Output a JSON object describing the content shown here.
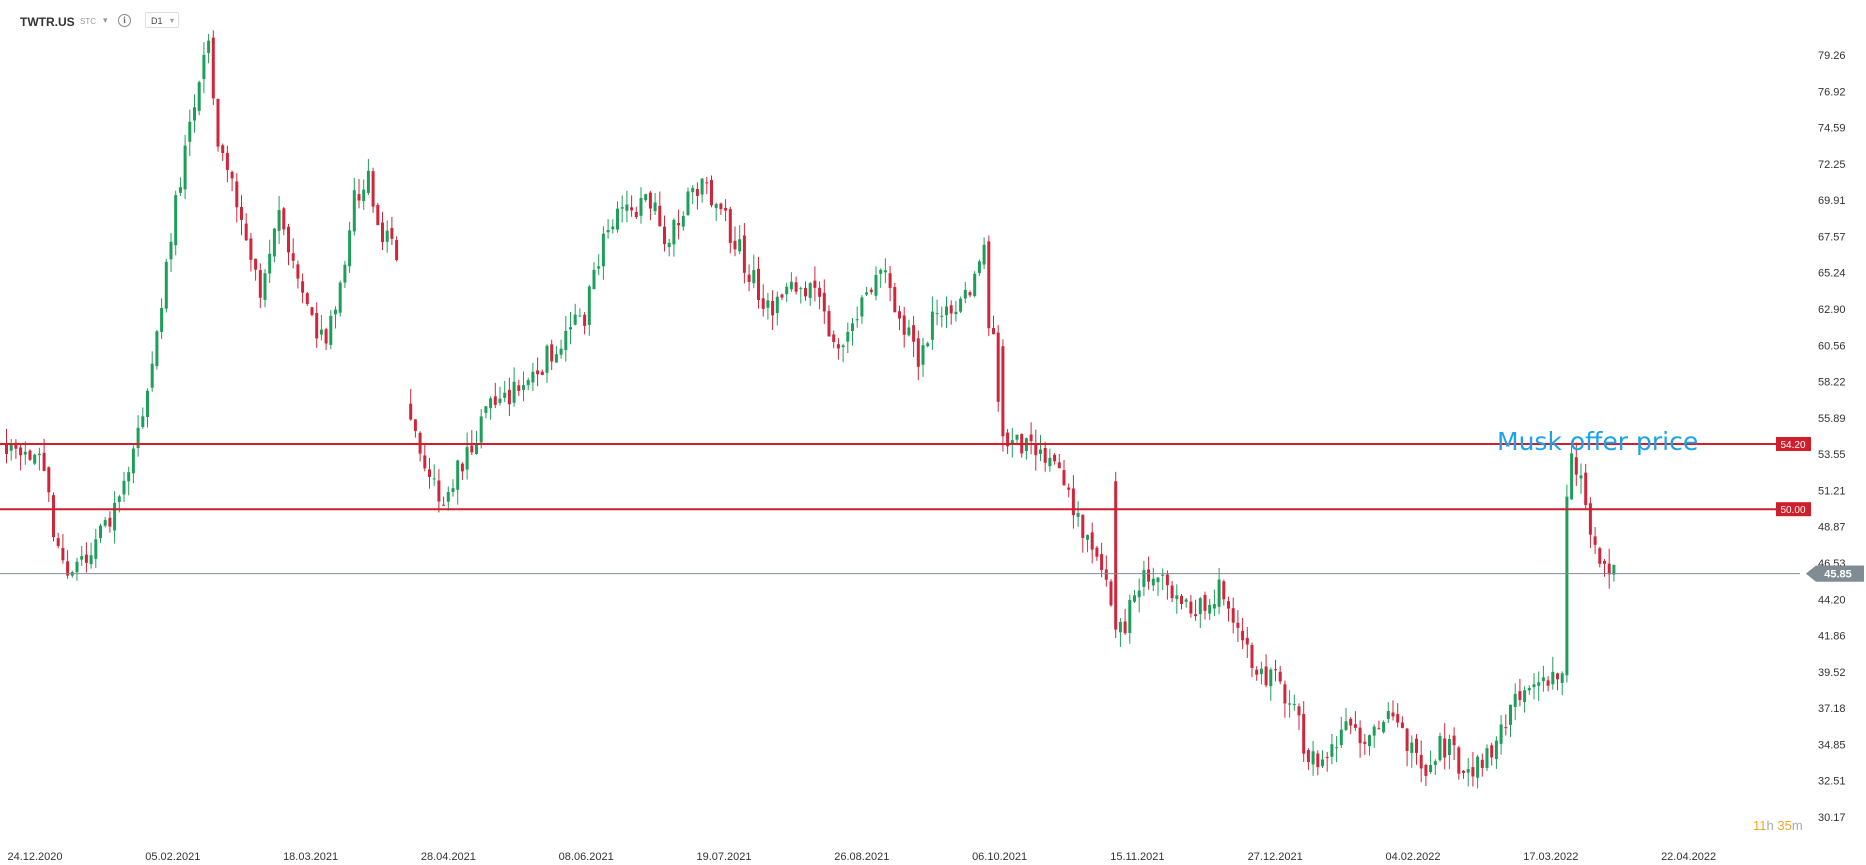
{
  "toolbar": {
    "symbol": "TWTR.US",
    "instrument_type": "STC",
    "interval": "D1"
  },
  "annotation": {
    "text": "Musk offer price",
    "color": "#1aa3e8"
  },
  "timer": {
    "hours": "11",
    "hours_unit": "h",
    "minutes": "35",
    "minutes_unit": "m"
  },
  "colors": {
    "up": "#1e9e5a",
    "down": "#d0263b",
    "level_line": "#d01f2b",
    "current_price": "#7f8c94",
    "axis_text": "#333333"
  },
  "chart_data": {
    "type": "candlestick",
    "title": "",
    "xlabel": "",
    "ylabel": "",
    "ylim": [
      30.17,
      81.0
    ],
    "y_tick_labels": [
      "79.26",
      "76.92",
      "74.59",
      "72.25",
      "69.91",
      "67.57",
      "65.24",
      "62.90",
      "60.56",
      "58.22",
      "55.89",
      "53.55",
      "51.21",
      "48.87",
      "46.53",
      "44.20",
      "41.86",
      "39.52",
      "37.18",
      "34.85",
      "32.51",
      "30.17"
    ],
    "x_tick_labels": [
      "24.12.2020",
      "05.02.2021",
      "18.03.2021",
      "28.04.2021",
      "08.06.2021",
      "19.07.2021",
      "26.08.2021",
      "06.10.2021",
      "15.11.2021",
      "27.12.2021",
      "04.02.2022",
      "17.03.2022",
      "22.04.2022"
    ],
    "grid": false,
    "horizontal_levels": [
      {
        "value": 54.2,
        "label": "54.20"
      },
      {
        "value": 50.0,
        "label": "50.00"
      }
    ],
    "current_price": {
      "value": 45.85,
      "label": "45.85"
    },
    "price_path": [
      [
        0,
        54.3
      ],
      [
        6,
        53.8
      ],
      [
        9,
        51.5
      ],
      [
        10,
        48.0
      ],
      [
        14,
        45.2
      ],
      [
        17,
        47.2
      ],
      [
        22,
        49.5
      ],
      [
        28,
        54.5
      ],
      [
        32,
        61.0
      ],
      [
        35,
        68.0
      ],
      [
        38,
        73.0
      ],
      [
        43,
        80.0
      ],
      [
        45,
        73.0
      ],
      [
        50,
        69.0
      ],
      [
        54,
        64.0
      ],
      [
        58,
        69.0
      ],
      [
        62,
        65.0
      ],
      [
        65,
        62.0
      ],
      [
        68,
        60.8
      ],
      [
        71,
        64.0
      ],
      [
        74,
        70.0
      ],
      [
        77,
        71.0
      ],
      [
        80,
        68.0
      ],
      [
        83,
        66.0
      ],
      [
        85,
        64.5
      ],
      [
        86,
        55.0
      ],
      [
        88,
        54.0
      ],
      [
        91,
        51.5
      ],
      [
        94,
        50.5
      ],
      [
        96,
        52.5
      ],
      [
        99,
        54.0
      ],
      [
        103,
        56.5
      ],
      [
        110,
        58.0
      ],
      [
        117,
        60.5
      ],
      [
        123,
        62.5
      ],
      [
        127,
        67.5
      ],
      [
        131,
        69.0
      ],
      [
        134,
        69.5
      ],
      [
        137,
        70.0
      ],
      [
        140,
        67.0
      ],
      [
        143,
        69.0
      ],
      [
        146,
        71.0
      ],
      [
        150,
        70.0
      ],
      [
        153,
        68.5
      ],
      [
        157,
        66.0
      ],
      [
        160,
        64.0
      ],
      [
        163,
        63.0
      ],
      [
        166,
        64.0
      ],
      [
        170,
        64.5
      ],
      [
        174,
        62.5
      ],
      [
        177,
        60.5
      ],
      [
        180,
        61.5
      ],
      [
        183,
        64.0
      ],
      [
        186,
        66.0
      ],
      [
        188,
        63.5
      ],
      [
        191,
        61.5
      ],
      [
        194,
        59.8
      ],
      [
        197,
        62.0
      ],
      [
        200,
        63.0
      ],
      [
        203,
        63.5
      ],
      [
        206,
        65.0
      ],
      [
        208,
        66.5
      ],
      [
        209,
        61.8
      ],
      [
        210,
        60.5
      ],
      [
        212,
        54.5
      ],
      [
        216,
        54.0
      ],
      [
        219,
        53.5
      ],
      [
        222,
        53.0
      ],
      [
        225,
        51.5
      ],
      [
        228,
        49.5
      ],
      [
        231,
        47.0
      ],
      [
        234,
        45.5
      ],
      [
        236,
        43.0
      ],
      [
        238,
        42.5
      ],
      [
        240,
        44.5
      ],
      [
        243,
        46.0
      ],
      [
        245,
        45.5
      ],
      [
        248,
        44.0
      ],
      [
        252,
        43.5
      ],
      [
        255,
        44.0
      ],
      [
        258,
        44.8
      ],
      [
        261,
        43.0
      ],
      [
        264,
        40.5
      ],
      [
        267,
        39.5
      ],
      [
        270,
        39.0
      ],
      [
        273,
        37.5
      ],
      [
        275,
        36.0
      ],
      [
        277,
        34.0
      ],
      [
        280,
        33.8
      ],
      [
        283,
        35.0
      ],
      [
        285,
        37.0
      ],
      [
        288,
        35.5
      ],
      [
        291,
        36.0
      ],
      [
        294,
        36.5
      ],
      [
        297,
        35.5
      ],
      [
        299,
        34.5
      ],
      [
        301,
        32.5
      ],
      [
        303,
        34.0
      ],
      [
        305,
        35.0
      ],
      [
        307,
        34.5
      ],
      [
        309,
        33.5
      ],
      [
        311,
        33.0
      ],
      [
        314,
        33.5
      ],
      [
        317,
        34.5
      ],
      [
        320,
        37.0
      ],
      [
        323,
        38.0
      ],
      [
        326,
        39.0
      ],
      [
        329,
        39.5
      ],
      [
        331,
        39.0
      ],
      [
        332,
        50.5
      ],
      [
        333,
        53.0
      ],
      [
        335,
        52.0
      ],
      [
        336,
        50.0
      ],
      [
        338,
        47.0
      ],
      [
        340,
        46.2
      ],
      [
        342,
        45.9
      ]
    ]
  }
}
